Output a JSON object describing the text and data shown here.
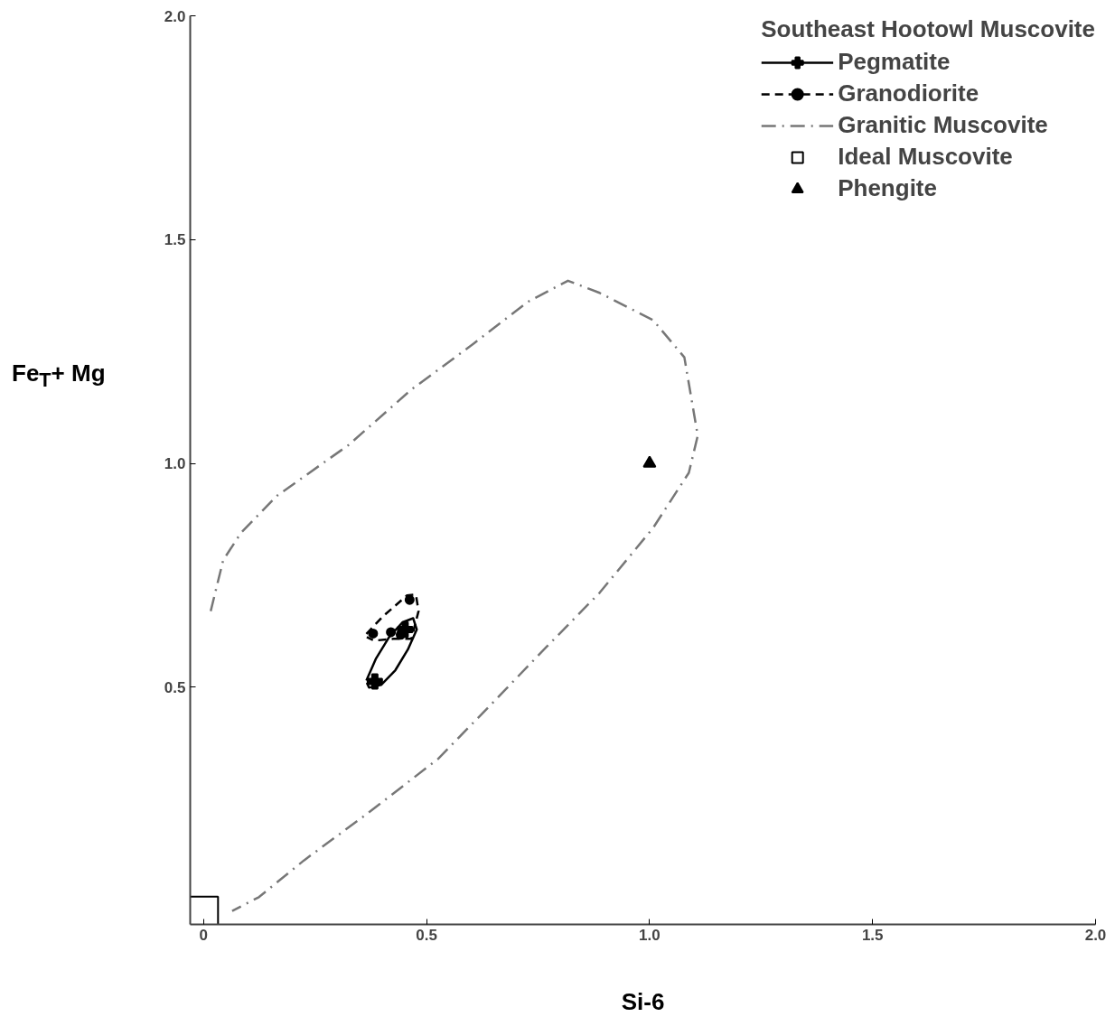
{
  "chart_data": {
    "type": "scatter",
    "xlabel": "Si-6",
    "ylabel": "Fe$_{T}$+ Mg",
    "legend_title": "Southeast Hootowl Muscovite",
    "xlim": [
      -0.03,
      2.0
    ],
    "ylim": [
      -0.03,
      2.0
    ],
    "xticks": [
      0,
      0.5,
      {
        "value": 1.0,
        "label": "1.0"
      },
      1.5,
      {
        "value": 2.0,
        "label": "2.0"
      }
    ],
    "yticks": [
      0.5,
      {
        "value": 1.0,
        "label": "1.0"
      },
      1.5,
      {
        "value": 2.0,
        "label": "2.0"
      }
    ],
    "grid": false,
    "legend": "top right",
    "series": [
      {
        "name": "Pegmatite",
        "marker": "cross",
        "color": "#000000",
        "x": [
          0.384,
          0.452
        ],
        "values": [
          0.513,
          0.629
        ]
      },
      {
        "type": "line",
        "line_style": "solid",
        "marker": "none",
        "color": "#000000",
        "x": [
          0.365,
          0.386,
          0.416,
          0.446,
          0.47,
          0.478,
          0.458,
          0.43,
          0.398,
          0.371,
          0.366
        ],
        "values": [
          0.515,
          0.563,
          0.612,
          0.645,
          0.654,
          0.629,
          0.584,
          0.538,
          0.505,
          0.499,
          0.51
        ]
      },
      {
        "name": "Granodiorite",
        "marker": "circle",
        "color": "#000000",
        "x": [
          0.38,
          0.42,
          0.442,
          0.462
        ],
        "values": [
          0.62,
          0.623,
          0.617,
          0.695
        ]
      },
      {
        "type": "line",
        "line_style": "dashed",
        "marker": "none",
        "color": "#000000",
        "x": [
          0.365,
          0.402,
          0.456,
          0.476,
          0.482,
          0.466,
          0.426,
          0.382,
          0.366
        ],
        "values": [
          0.619,
          0.658,
          0.705,
          0.707,
          0.67,
          0.608,
          0.608,
          0.604,
          0.612
        ]
      },
      {
        "name": "Granitic Muscovite",
        "type": "line",
        "line_style": "dashdot",
        "marker": "none",
        "color": "#777777",
        "x": [
          0.016,
          0.044,
          0.084,
          0.165,
          0.325,
          0.466,
          0.606,
          0.727,
          0.817,
          0.888,
          1.008,
          1.078,
          1.108,
          1.088,
          1.008,
          0.888,
          0.767,
          0.647,
          0.526,
          0.365,
          0.225,
          0.124,
          0.064
        ],
        "values": [
          0.67,
          0.784,
          0.845,
          0.928,
          1.041,
          1.165,
          1.268,
          1.361,
          1.408,
          1.381,
          1.32,
          1.237,
          1.062,
          0.979,
          0.856,
          0.711,
          0.588,
          0.464,
          0.34,
          0.216,
          0.113,
          0.031,
          0.0
        ]
      },
      {
        "name": "Ideal Muscovite",
        "marker": "square",
        "color": "#000000",
        "x": [
          0.0
        ],
        "values": [
          0.0
        ]
      },
      {
        "name": "Phengite",
        "marker": "triangle",
        "color": "#000000",
        "x": [
          1.0
        ],
        "values": [
          1.0
        ]
      }
    ]
  }
}
